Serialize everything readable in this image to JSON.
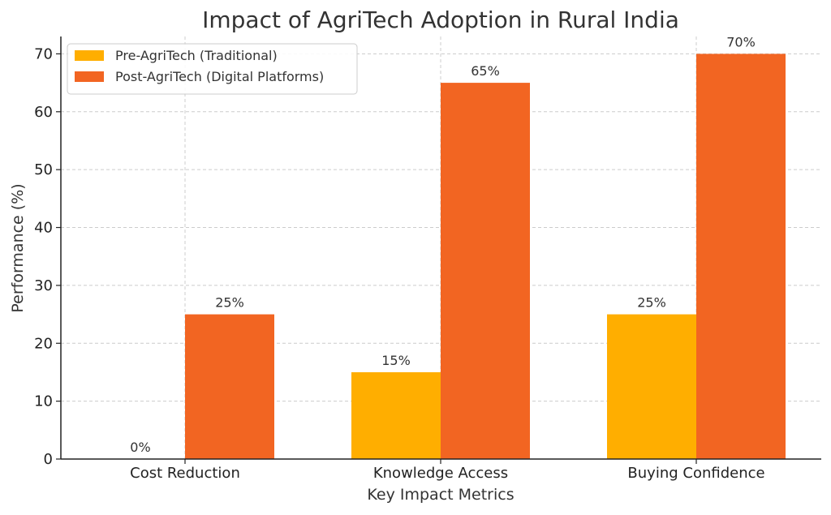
{
  "chart_data": {
    "type": "bar",
    "title": "Impact of AgriTech Adoption in Rural India",
    "xlabel": "Key Impact Metrics",
    "ylabel": "Performance (%)",
    "categories": [
      "Cost Reduction",
      "Knowledge Access",
      "Buying Confidence"
    ],
    "series": [
      {
        "name": "Pre-AgriTech (Traditional)",
        "values": [
          0,
          15,
          25
        ],
        "labels": [
          "0%",
          "15%",
          "25%"
        ],
        "color": "#FFAE00"
      },
      {
        "name": "Post-AgriTech (Digital Platforms)",
        "values": [
          25,
          65,
          70
        ],
        "labels": [
          "25%",
          "65%",
          "70%"
        ],
        "color": "#F26522"
      }
    ],
    "ylim": [
      0,
      73
    ],
    "yticks": [
      0,
      10,
      20,
      30,
      40,
      50,
      60,
      70
    ],
    "grid": true,
    "legend_position": "top-left"
  }
}
